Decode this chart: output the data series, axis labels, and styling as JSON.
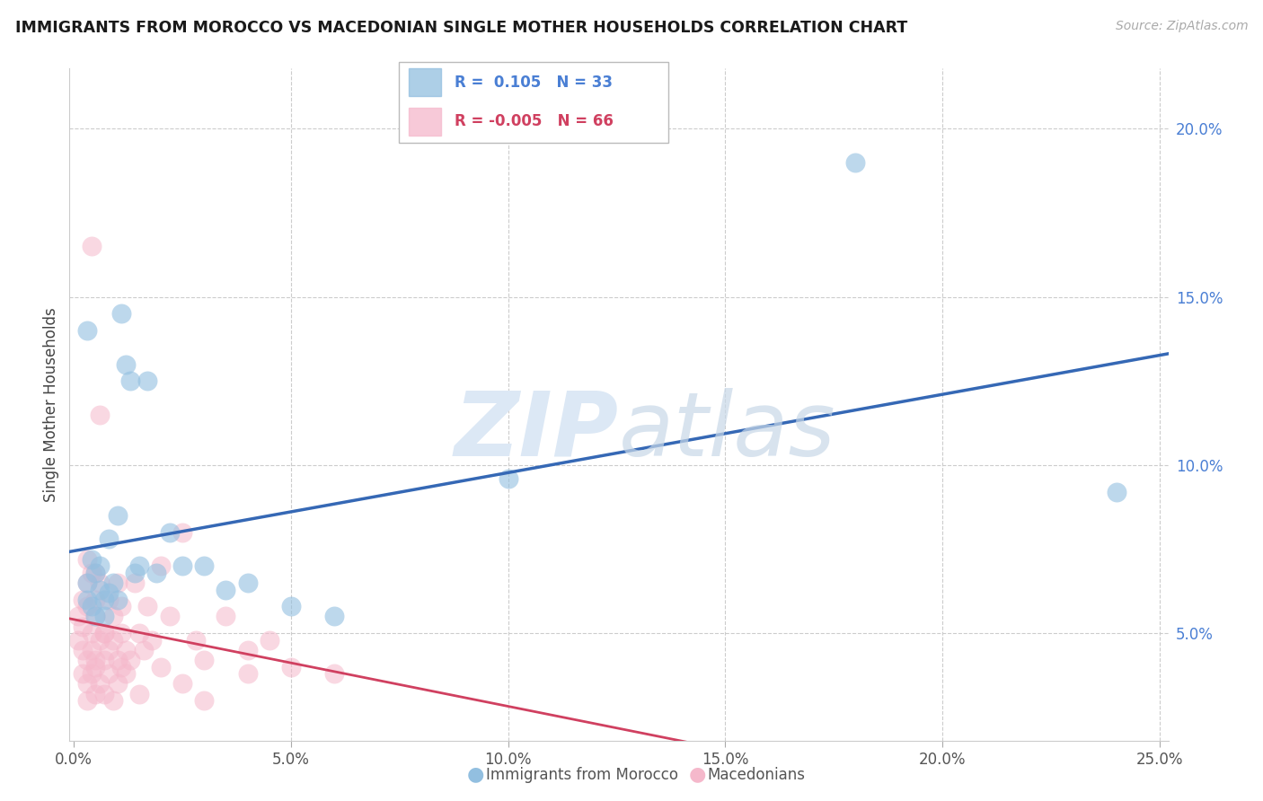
{
  "title": "IMMIGRANTS FROM MOROCCO VS MACEDONIAN SINGLE MOTHER HOUSEHOLDS CORRELATION CHART",
  "source": "Source: ZipAtlas.com",
  "label_morocco": "Immigrants from Morocco",
  "label_macedonian": "Macedonians",
  "ylabel": "Single Mother Households",
  "xlim": [
    -0.001,
    0.252
  ],
  "ylim": [
    0.018,
    0.218
  ],
  "xticks": [
    0.0,
    0.05,
    0.1,
    0.15,
    0.2,
    0.25
  ],
  "xtick_labels": [
    "0.0%",
    "5.0%",
    "10.0%",
    "15.0%",
    "20.0%",
    "25.0%"
  ],
  "yticks": [
    0.05,
    0.1,
    0.15,
    0.2
  ],
  "ytick_labels": [
    "5.0%",
    "10.0%",
    "15.0%",
    "20.0%"
  ],
  "r_morocco": 0.105,
  "n_morocco": 33,
  "r_macedonian": -0.005,
  "n_macedonian": 66,
  "color_morocco": "#92bfe0",
  "color_macedonian": "#f5b8cb",
  "color_line_morocco": "#3568b5",
  "color_line_macedonian": "#d04060",
  "color_ytick": "#4a7fd4",
  "watermark_color": "#dce8f5",
  "morocco_x": [
    0.003,
    0.003,
    0.004,
    0.004,
    0.005,
    0.005,
    0.006,
    0.006,
    0.007,
    0.007,
    0.008,
    0.008,
    0.009,
    0.01,
    0.01,
    0.011,
    0.012,
    0.013,
    0.014,
    0.015,
    0.017,
    0.019,
    0.022,
    0.025,
    0.03,
    0.035,
    0.04,
    0.05,
    0.06,
    0.1,
    0.18,
    0.24,
    0.003
  ],
  "morocco_y": [
    0.065,
    0.06,
    0.072,
    0.058,
    0.068,
    0.055,
    0.07,
    0.063,
    0.06,
    0.055,
    0.078,
    0.062,
    0.065,
    0.085,
    0.06,
    0.145,
    0.13,
    0.125,
    0.068,
    0.07,
    0.125,
    0.068,
    0.08,
    0.07,
    0.07,
    0.063,
    0.065,
    0.058,
    0.055,
    0.096,
    0.19,
    0.092,
    0.14
  ],
  "macedonian_x": [
    0.001,
    0.001,
    0.002,
    0.002,
    0.002,
    0.003,
    0.003,
    0.003,
    0.004,
    0.004,
    0.004,
    0.005,
    0.005,
    0.005,
    0.006,
    0.006,
    0.007,
    0.007,
    0.008,
    0.008,
    0.009,
    0.009,
    0.01,
    0.01,
    0.011,
    0.011,
    0.012,
    0.013,
    0.014,
    0.015,
    0.016,
    0.017,
    0.018,
    0.02,
    0.022,
    0.025,
    0.028,
    0.03,
    0.035,
    0.04,
    0.045,
    0.002,
    0.003,
    0.003,
    0.004,
    0.005,
    0.005,
    0.006,
    0.007,
    0.008,
    0.009,
    0.01,
    0.011,
    0.012,
    0.015,
    0.02,
    0.025,
    0.03,
    0.04,
    0.05,
    0.003,
    0.004,
    0.005,
    0.006,
    0.007,
    0.06
  ],
  "macedonian_y": [
    0.048,
    0.055,
    0.052,
    0.045,
    0.06,
    0.042,
    0.058,
    0.065,
    0.05,
    0.045,
    0.068,
    0.042,
    0.06,
    0.055,
    0.048,
    0.065,
    0.05,
    0.042,
    0.06,
    0.045,
    0.055,
    0.048,
    0.042,
    0.065,
    0.05,
    0.058,
    0.045,
    0.042,
    0.065,
    0.05,
    0.045,
    0.058,
    0.048,
    0.07,
    0.055,
    0.08,
    0.048,
    0.042,
    0.055,
    0.045,
    0.048,
    0.038,
    0.035,
    0.03,
    0.038,
    0.032,
    0.04,
    0.035,
    0.032,
    0.038,
    0.03,
    0.035,
    0.04,
    0.038,
    0.032,
    0.04,
    0.035,
    0.03,
    0.038,
    0.04,
    0.072,
    0.165,
    0.068,
    0.115,
    0.05,
    0.038
  ]
}
